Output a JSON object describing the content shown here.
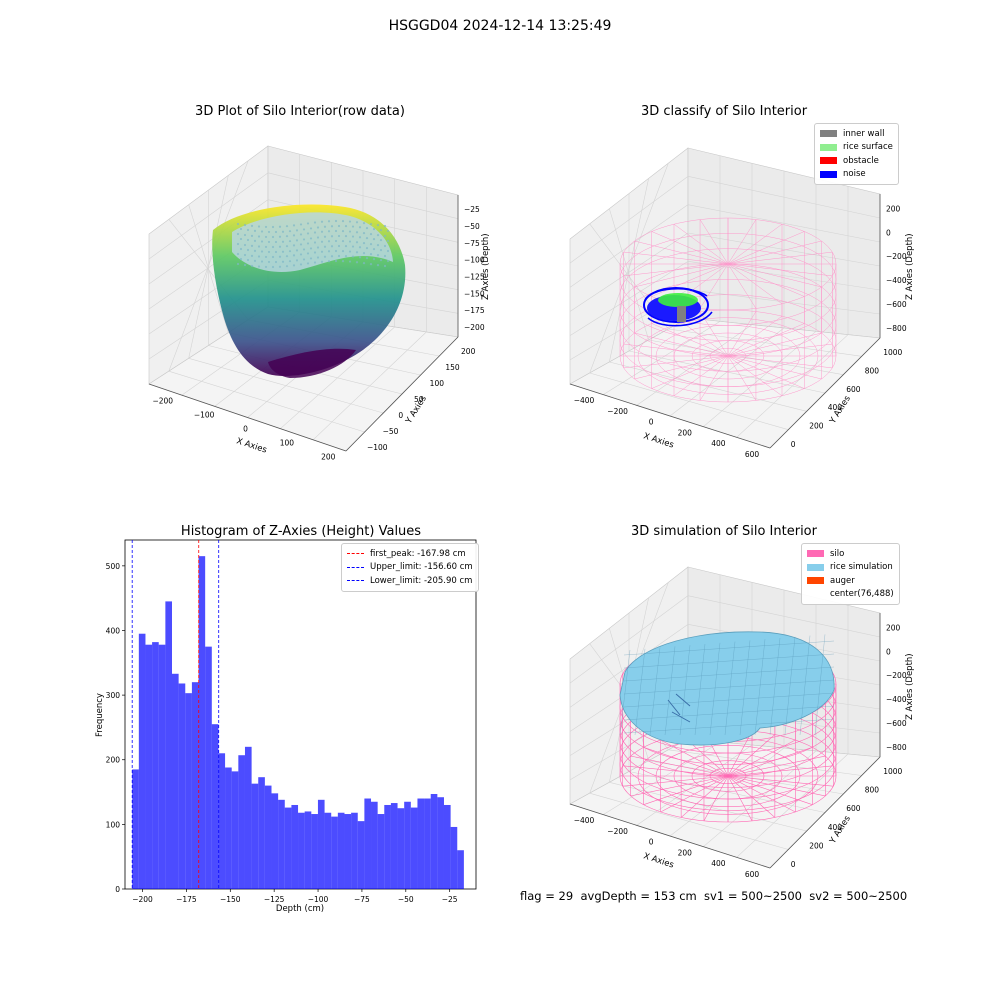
{
  "suptitle": "HSGGD04 2024-12-14 13:25:49",
  "panels": {
    "raw": {
      "title": "3D Plot of Silo Interior(row data)",
      "xlabel": "X Axies",
      "ylabel": "Y Axies",
      "zlabel": "Z Axies (Depth)",
      "xticks": [
        "−200",
        "−100",
        "0",
        "100",
        "200"
      ],
      "yticks": [
        "−100",
        "−50",
        "0",
        "50",
        "100",
        "150",
        "200"
      ],
      "zticks": [
        "−25",
        "−50",
        "−75",
        "−100",
        "−125",
        "−150",
        "−175",
        "−200"
      ]
    },
    "classify": {
      "title": "3D classify of Silo Interior",
      "xlabel": "X Axies",
      "ylabel": "Y Axies",
      "zlabel": "Z Axies (Depth)",
      "xticks": [
        "−400",
        "−200",
        "0",
        "200",
        "400",
        "600"
      ],
      "yticks": [
        "0",
        "200",
        "400",
        "600",
        "800",
        "1000"
      ],
      "zticks": [
        "200",
        "0",
        "−200",
        "−400",
        "−600",
        "−800"
      ],
      "legend": [
        {
          "label": "inner wall",
          "color": "#808080"
        },
        {
          "label": "rice surface",
          "color": "#90ee90"
        },
        {
          "label": "obstacle",
          "color": "#ff0000"
        },
        {
          "label": "noise",
          "color": "#0000ff"
        }
      ]
    },
    "histogram": {
      "title": "Histogram of Z-Axies (Height) Values",
      "xlabel": "Depth (cm)",
      "ylabel": "Frequency",
      "xticks": [
        "−200",
        "−175",
        "−150",
        "−125",
        "−100",
        "−75",
        "−50",
        "−25"
      ],
      "yticks": [
        "0",
        "100",
        "200",
        "300",
        "400",
        "500"
      ],
      "legend": [
        {
          "label": "first_peak: -167.98 cm",
          "color": "#ff0000"
        },
        {
          "label": "Upper_limit: -156.60 cm",
          "color": "#0000ff"
        },
        {
          "label": "Lower_limit: -205.90 cm",
          "color": "#0000ff"
        }
      ]
    },
    "simulation": {
      "title": "3D simulation of Silo Interior",
      "xlabel": "X Axies",
      "ylabel": "Y Axies",
      "zlabel": "Z Axies (Depth)",
      "xticks": [
        "−400",
        "−200",
        "0",
        "200",
        "400",
        "600"
      ],
      "yticks": [
        "0",
        "200",
        "400",
        "600",
        "800",
        "1000"
      ],
      "zticks": [
        "200",
        "0",
        "−200",
        "−400",
        "−600",
        "−800"
      ],
      "legend": [
        {
          "label": "silo",
          "color": "#ff69b4"
        },
        {
          "label": "rice simulation",
          "color": "#87ceeb"
        },
        {
          "label": "auger",
          "color": "#ff4500"
        },
        {
          "label": "center(76,488)",
          "color": ""
        }
      ]
    }
  },
  "footer": "flag = 29  avgDepth = 153 cm  sv1 = 500~2500  sv2 = 500~2500",
  "chart_data": [
    {
      "type": "scatter",
      "subtype": "3d",
      "title": "3D Plot of Silo Interior(row data)",
      "xlabel": "X Axies",
      "ylabel": "Y Axies",
      "zlabel": "Z Axies (Depth)",
      "xlim": [
        -240,
        220
      ],
      "ylim": [
        -110,
        220
      ],
      "zlim": [
        -210,
        -15
      ],
      "colormap": "viridis"
    },
    {
      "type": "scatter",
      "subtype": "3d",
      "title": "3D classify of Silo Interior",
      "xlabel": "X Axies",
      "ylabel": "Y Axies",
      "zlabel": "Z Axies (Depth)",
      "xlim": [
        -500,
        650
      ],
      "ylim": [
        -100,
        1050
      ],
      "zlim": [
        -900,
        300
      ],
      "series": [
        {
          "name": "inner wall",
          "color": "#808080"
        },
        {
          "name": "rice surface",
          "color": "#90ee90"
        },
        {
          "name": "obstacle",
          "color": "#ff0000"
        },
        {
          "name": "noise",
          "color": "#0000ff"
        }
      ]
    },
    {
      "type": "bar",
      "subtype": "histogram",
      "title": "Histogram of Z-Axies (Height) Values",
      "xlabel": "Depth (cm)",
      "ylabel": "Frequency",
      "xlim": [
        -210,
        -10
      ],
      "ylim": [
        0,
        540
      ],
      "bin_start": -205.9,
      "bin_width": 3.78,
      "values": [
        185,
        395,
        378,
        382,
        378,
        445,
        333,
        318,
        303,
        320,
        515,
        375,
        255,
        210,
        188,
        182,
        207,
        220,
        163,
        173,
        160,
        148,
        138,
        126,
        130,
        118,
        120,
        116,
        138,
        118,
        112,
        118,
        116,
        118,
        105,
        140,
        135,
        116,
        130,
        133,
        125,
        135,
        126,
        140,
        140,
        147,
        142,
        130,
        96,
        60
      ],
      "reference_lines": [
        {
          "name": "first_peak: -167.98 cm",
          "x": -167.98,
          "color": "#ff0000"
        },
        {
          "name": "Upper_limit: -156.60 cm",
          "x": -156.6,
          "color": "#0000ff"
        },
        {
          "name": "Lower_limit: -205.90 cm",
          "x": -205.9,
          "color": "#0000ff"
        }
      ]
    },
    {
      "type": "area",
      "subtype": "3d-surface",
      "title": "3D simulation of Silo Interior",
      "xlabel": "X Axies",
      "ylabel": "Y Axies",
      "zlabel": "Z Axies (Depth)",
      "xlim": [
        -500,
        650
      ],
      "ylim": [
        -100,
        1050
      ],
      "zlim": [
        -900,
        300
      ],
      "series": [
        {
          "name": "silo",
          "color": "#ff69b4"
        },
        {
          "name": "rice simulation",
          "color": "#87ceeb"
        },
        {
          "name": "auger",
          "color": "#ff4500"
        },
        {
          "name": "center(76,488)",
          "color": ""
        }
      ]
    }
  ]
}
